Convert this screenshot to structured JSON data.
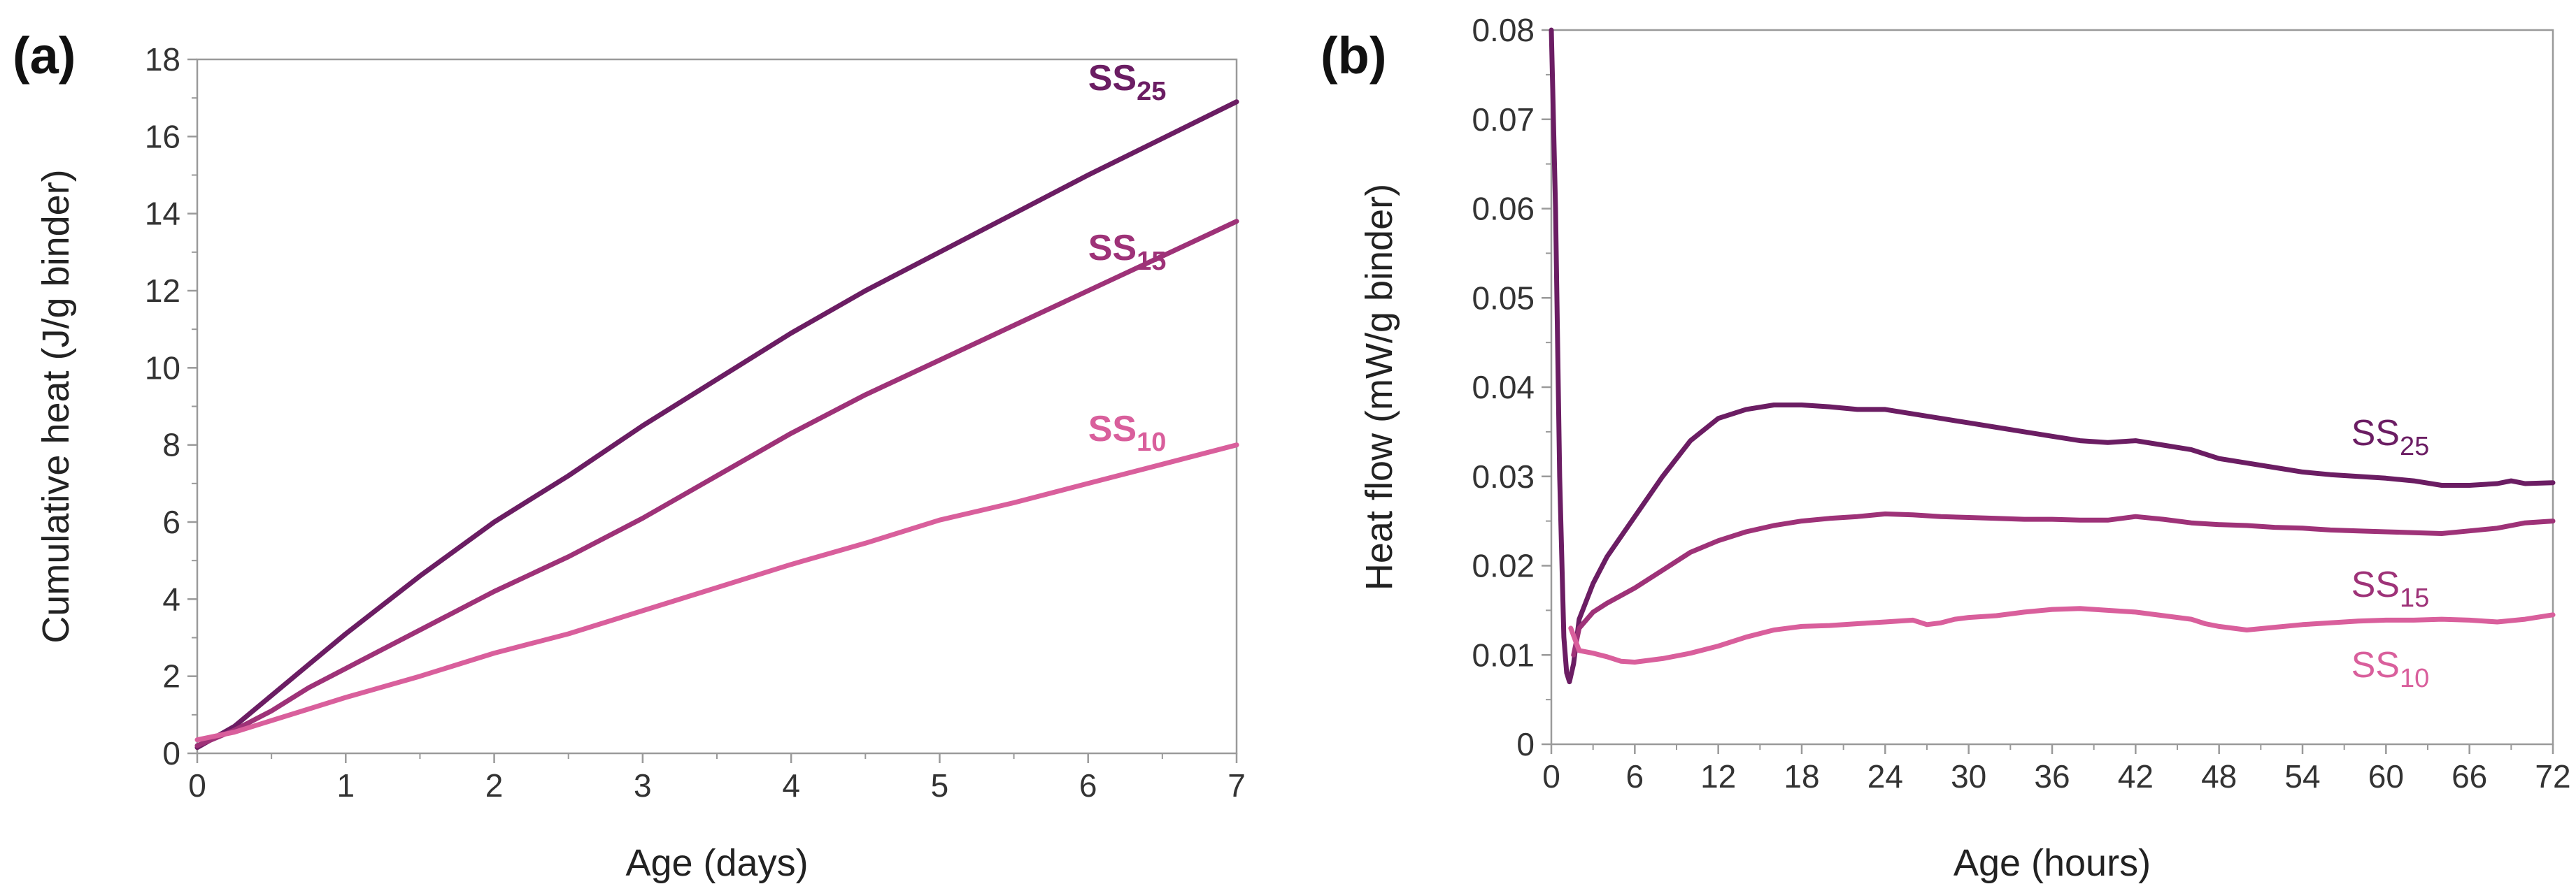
{
  "chart_data": [
    {
      "panel_label": "(a)",
      "type": "line",
      "xlabel": "Age (days)",
      "ylabel": "Cumulative heat (J/g binder)",
      "xlim": [
        0,
        7
      ],
      "ylim": [
        0,
        18
      ],
      "xticks": [
        0,
        1,
        2,
        3,
        4,
        5,
        6,
        7
      ],
      "yticks": [
        0,
        2,
        4,
        6,
        8,
        10,
        12,
        14,
        16,
        18
      ],
      "grid": false,
      "series": [
        {
          "name": "SS",
          "subscript": "25",
          "color": "#6b1d63",
          "label_bold": true,
          "label_at": [
            6.0,
            17.2
          ],
          "x": [
            0,
            0.25,
            0.5,
            0.75,
            1,
            1.5,
            2,
            2.5,
            3,
            3.5,
            4,
            4.5,
            5,
            5.5,
            6,
            6.5,
            7
          ],
          "y": [
            0.15,
            0.7,
            1.5,
            2.3,
            3.1,
            4.6,
            6.0,
            7.2,
            8.5,
            9.7,
            10.9,
            12.0,
            13.0,
            14.0,
            15.0,
            15.95,
            16.9
          ]
        },
        {
          "name": "SS",
          "subscript": "15",
          "color": "#9e3278",
          "label_bold": true,
          "label_at": [
            6.0,
            12.8
          ],
          "x": [
            0,
            0.25,
            0.5,
            0.75,
            1,
            1.5,
            2,
            2.5,
            3,
            3.5,
            4,
            4.5,
            5,
            5.5,
            6,
            6.5,
            7
          ],
          "y": [
            0.2,
            0.6,
            1.1,
            1.7,
            2.2,
            3.2,
            4.2,
            5.1,
            6.1,
            7.2,
            8.3,
            9.3,
            10.2,
            11.1,
            12.0,
            12.9,
            13.8
          ]
        },
        {
          "name": "SS",
          "subscript": "10",
          "color": "#d95f9c",
          "label_bold": true,
          "label_at": [
            6.0,
            8.1
          ],
          "x": [
            0,
            0.25,
            0.5,
            0.75,
            1,
            1.5,
            2,
            2.5,
            3,
            3.5,
            4,
            4.5,
            5,
            5.5,
            6,
            6.5,
            7
          ],
          "y": [
            0.35,
            0.55,
            0.85,
            1.15,
            1.45,
            2.0,
            2.6,
            3.1,
            3.7,
            4.3,
            4.9,
            5.45,
            6.05,
            6.5,
            7.0,
            7.5,
            8.0
          ]
        }
      ]
    },
    {
      "panel_label": "(b)",
      "type": "line",
      "xlabel": "Age (hours)",
      "ylabel": "Heat flow (mW/g binder)",
      "xlim": [
        0,
        72
      ],
      "ylim": [
        0,
        0.08
      ],
      "xticks": [
        0,
        6,
        12,
        18,
        24,
        30,
        36,
        42,
        48,
        54,
        60,
        66,
        72
      ],
      "yticks": [
        "0",
        "0.01",
        "0.02",
        "0.03",
        "0.04",
        "0.05",
        "0.06",
        "0.07",
        "0.08"
      ],
      "grid": false,
      "series": [
        {
          "name": "SS",
          "subscript": "25",
          "color": "#6b1d63",
          "label_bold": false,
          "label_at": [
            57.5,
            0.0335
          ],
          "x": [
            0,
            0.3,
            0.6,
            0.9,
            1.1,
            1.3,
            1.6,
            2,
            3,
            4,
            6,
            8,
            10,
            12,
            14,
            16,
            18,
            20,
            22,
            24,
            26,
            28,
            30,
            32,
            34,
            36,
            38,
            40,
            42,
            44,
            46,
            48,
            50,
            52,
            54,
            56,
            58,
            60,
            62,
            64,
            66,
            68,
            69,
            70,
            72
          ],
          "y": [
            0.085,
            0.06,
            0.03,
            0.012,
            0.008,
            0.007,
            0.009,
            0.014,
            0.018,
            0.021,
            0.0255,
            0.03,
            0.034,
            0.0365,
            0.0375,
            0.038,
            0.038,
            0.0378,
            0.0375,
            0.0375,
            0.037,
            0.0365,
            0.036,
            0.0355,
            0.035,
            0.0345,
            0.034,
            0.0338,
            0.034,
            0.0335,
            0.033,
            0.032,
            0.0315,
            0.031,
            0.0305,
            0.0302,
            0.03,
            0.0298,
            0.0295,
            0.029,
            0.029,
            0.0292,
            0.0295,
            0.0292,
            0.0293
          ]
        },
        {
          "name": "SS",
          "subscript": "15",
          "color": "#9e3278",
          "label_bold": false,
          "label_at": [
            57.5,
            0.0165
          ],
          "x": [
            1.6,
            2,
            3,
            4,
            6,
            8,
            10,
            12,
            14,
            16,
            18,
            20,
            22,
            24,
            26,
            28,
            30,
            32,
            34,
            36,
            38,
            40,
            42,
            44,
            46,
            48,
            50,
            52,
            54,
            56,
            58,
            60,
            62,
            64,
            66,
            68,
            70,
            72
          ],
          "y": [
            0.01,
            0.013,
            0.0148,
            0.0158,
            0.0175,
            0.0195,
            0.0215,
            0.0228,
            0.0238,
            0.0245,
            0.025,
            0.0253,
            0.0255,
            0.0258,
            0.0257,
            0.0255,
            0.0254,
            0.0253,
            0.0252,
            0.0252,
            0.0251,
            0.0251,
            0.0255,
            0.0252,
            0.0248,
            0.0246,
            0.0245,
            0.0243,
            0.0242,
            0.024,
            0.0239,
            0.0238,
            0.0237,
            0.0236,
            0.0239,
            0.0242,
            0.0248,
            0.025
          ]
        },
        {
          "name": "SS",
          "subscript": "10",
          "color": "#d95f9c",
          "label_bold": false,
          "label_at": [
            57.5,
            0.0075
          ],
          "x": [
            1.4,
            2,
            3,
            4,
            5,
            6,
            8,
            10,
            12,
            14,
            16,
            18,
            20,
            22,
            24,
            26,
            27,
            28,
            29,
            30,
            32,
            34,
            36,
            38,
            40,
            42,
            44,
            46,
            47,
            48,
            50,
            52,
            54,
            56,
            58,
            60,
            62,
            64,
            66,
            68,
            70,
            72
          ],
          "y": [
            0.013,
            0.0105,
            0.0102,
            0.0098,
            0.0093,
            0.0092,
            0.0096,
            0.0102,
            0.011,
            0.012,
            0.0128,
            0.0132,
            0.0133,
            0.0135,
            0.0137,
            0.0139,
            0.0134,
            0.0136,
            0.014,
            0.0142,
            0.0144,
            0.0148,
            0.0151,
            0.0152,
            0.015,
            0.0148,
            0.0144,
            0.014,
            0.0135,
            0.0132,
            0.0128,
            0.0131,
            0.0134,
            0.0136,
            0.0138,
            0.0139,
            0.0139,
            0.014,
            0.0139,
            0.0137,
            0.014,
            0.0145
          ]
        }
      ]
    }
  ]
}
